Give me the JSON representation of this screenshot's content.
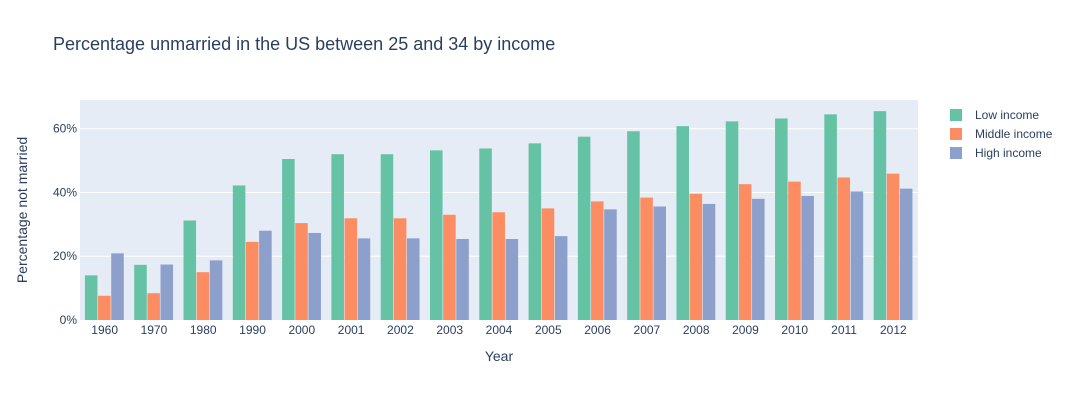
{
  "chart_data": {
    "type": "bar",
    "title": "Percentage unmarried in the US between 25 and 34 by income",
    "xlabel": "Year",
    "ylabel": "Percentage not married",
    "categories": [
      "1960",
      "1970",
      "1980",
      "1990",
      "2000",
      "2001",
      "2002",
      "2003",
      "2004",
      "2005",
      "2006",
      "2007",
      "2008",
      "2009",
      "2010",
      "2011",
      "2012"
    ],
    "ylim": [
      0,
      69
    ],
    "yticks": [
      0,
      20,
      40,
      60
    ],
    "ytick_labels": [
      "0%",
      "20%",
      "40%",
      "60%"
    ],
    "grid": true,
    "legend_position": "right",
    "series": [
      {
        "name": "Low income",
        "color": "#66c2a5",
        "values": [
          14,
          17.3,
          31.2,
          42.2,
          50.5,
          52,
          52,
          53.2,
          53.8,
          55.4,
          57.5,
          59.2,
          60.8,
          62.3,
          63.2,
          64.5,
          65.5
        ]
      },
      {
        "name": "Middle income",
        "color": "#fc8d62",
        "values": [
          7.6,
          8.4,
          15,
          24.5,
          30.4,
          31.9,
          31.9,
          33,
          33.8,
          35,
          37.2,
          38.4,
          39.6,
          42.6,
          43.4,
          44.7,
          45.9
        ]
      },
      {
        "name": "High income",
        "color": "#8da0cb",
        "values": [
          20.9,
          17.4,
          18.7,
          28,
          27.3,
          25.6,
          25.6,
          25.4,
          25.4,
          26.3,
          34.7,
          35.6,
          36.4,
          38,
          38.9,
          40.3,
          41.2
        ]
      }
    ]
  }
}
